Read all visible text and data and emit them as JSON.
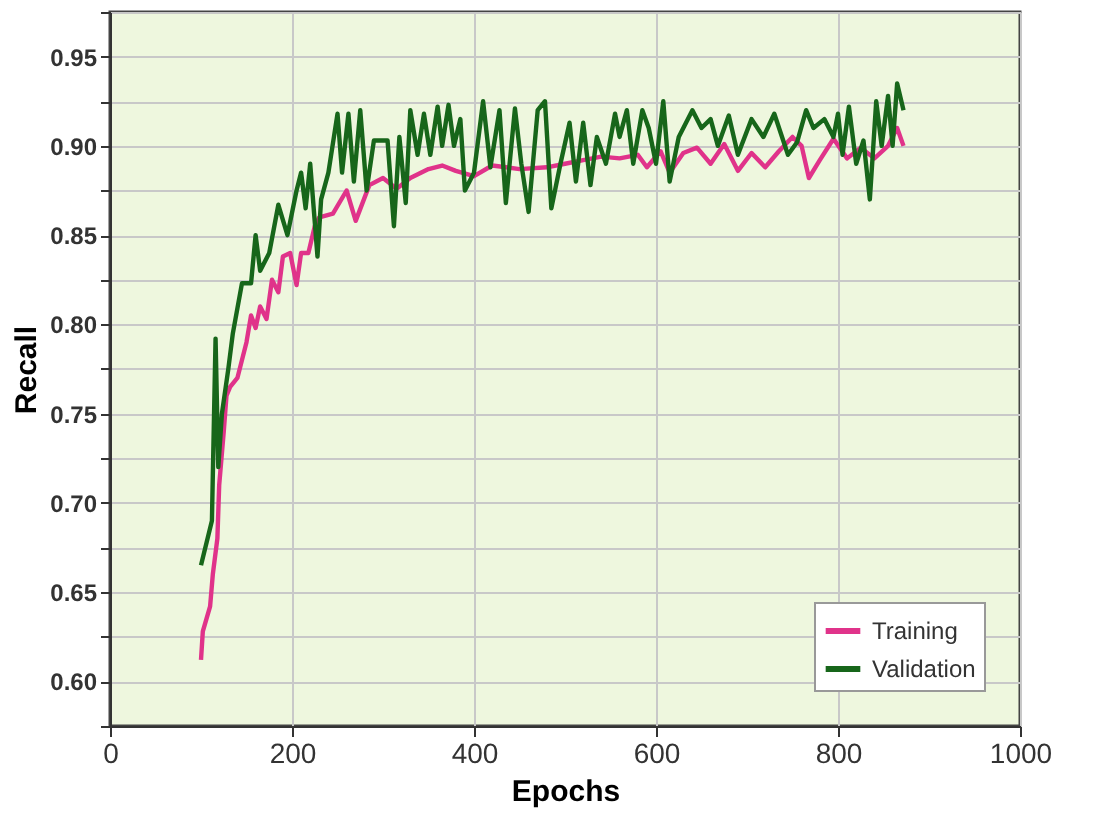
{
  "chart_data": {
    "type": "line",
    "xlabel": "Epochs",
    "ylabel": "Recall",
    "xlim": [
      0,
      1000
    ],
    "xticks": [
      0,
      200,
      400,
      600,
      800,
      1000
    ],
    "ylim": [
      0.575,
      0.975
    ],
    "yticks": [
      {
        "value": 0.575,
        "label": null
      },
      {
        "value": 0.6,
        "label": "0.60"
      },
      {
        "value": 0.625,
        "label": null
      },
      0.65,
      {
        "value": 0.675,
        "label": null
      },
      {
        "value": 0.7,
        "label": "0.70"
      },
      {
        "value": 0.725,
        "label": null
      },
      0.75,
      {
        "value": 0.775,
        "label": null
      },
      {
        "value": 0.8,
        "label": "0.80"
      },
      {
        "value": 0.825,
        "label": null
      },
      0.85,
      {
        "value": 0.875,
        "label": null
      },
      {
        "value": 0.9,
        "label": "0.90"
      },
      {
        "value": 0.925,
        "label": null
      },
      0.95,
      {
        "value": 0.975,
        "label": null
      }
    ],
    "grid": true,
    "legend": "bottom right",
    "line_style": "solid",
    "series": [
      {
        "name": "Training",
        "color": "#e0338a",
        "x": [
          100,
          102,
          110,
          113,
          118,
          120,
          125,
          128,
          132,
          140,
          150,
          155,
          160,
          165,
          172,
          178,
          185,
          190,
          198,
          205,
          210,
          218,
          225,
          230,
          245,
          260,
          270,
          285,
          300,
          315,
          330,
          350,
          365,
          380,
          400,
          420,
          450,
          480,
          500,
          520,
          540,
          560,
          580,
          590,
          605,
          615,
          630,
          645,
          660,
          675,
          690,
          705,
          720,
          735,
          750,
          760,
          768,
          780,
          795,
          810,
          825,
          840,
          855,
          865,
          872
        ],
        "values": [
          0.612,
          0.628,
          0.642,
          0.66,
          0.68,
          0.71,
          0.74,
          0.76,
          0.765,
          0.77,
          0.79,
          0.805,
          0.798,
          0.81,
          0.803,
          0.825,
          0.818,
          0.838,
          0.84,
          0.822,
          0.84,
          0.84,
          0.855,
          0.86,
          0.862,
          0.875,
          0.858,
          0.878,
          0.882,
          0.876,
          0.882,
          0.887,
          0.889,
          0.886,
          0.883,
          0.889,
          0.887,
          0.888,
          0.89,
          0.892,
          0.894,
          0.893,
          0.895,
          0.888,
          0.897,
          0.885,
          0.896,
          0.899,
          0.89,
          0.901,
          0.886,
          0.896,
          0.888,
          0.897,
          0.905,
          0.9,
          0.882,
          0.892,
          0.904,
          0.893,
          0.899,
          0.893,
          0.9,
          0.91,
          0.9
        ]
      },
      {
        "name": "Validation",
        "color": "#17661a",
        "x": [
          100,
          112,
          116,
          119,
          123,
          130,
          135,
          145,
          155,
          160,
          165,
          175,
          185,
          195,
          205,
          210,
          215,
          220,
          228,
          232,
          240,
          250,
          255,
          262,
          268,
          275,
          282,
          290,
          305,
          312,
          318,
          325,
          330,
          338,
          345,
          352,
          360,
          365,
          372,
          378,
          385,
          390,
          400,
          410,
          418,
          428,
          435,
          445,
          452,
          460,
          470,
          478,
          485,
          495,
          505,
          512,
          520,
          528,
          535,
          545,
          555,
          560,
          568,
          575,
          585,
          592,
          600,
          608,
          615,
          625,
          640,
          650,
          660,
          668,
          680,
          690,
          705,
          718,
          730,
          745,
          755,
          765,
          773,
          785,
          795,
          800,
          805,
          812,
          820,
          828,
          835,
          842,
          848,
          855,
          860,
          865,
          872
        ],
        "values": [
          0.665,
          0.69,
          0.792,
          0.72,
          0.75,
          0.775,
          0.795,
          0.823,
          0.823,
          0.85,
          0.83,
          0.84,
          0.867,
          0.85,
          0.875,
          0.885,
          0.865,
          0.89,
          0.838,
          0.87,
          0.885,
          0.918,
          0.885,
          0.918,
          0.88,
          0.92,
          0.875,
          0.903,
          0.903,
          0.855,
          0.905,
          0.868,
          0.92,
          0.895,
          0.918,
          0.895,
          0.922,
          0.9,
          0.923,
          0.9,
          0.915,
          0.875,
          0.885,
          0.925,
          0.888,
          0.92,
          0.868,
          0.921,
          0.89,
          0.863,
          0.92,
          0.925,
          0.865,
          0.89,
          0.913,
          0.88,
          0.913,
          0.878,
          0.905,
          0.89,
          0.918,
          0.905,
          0.92,
          0.89,
          0.92,
          0.91,
          0.89,
          0.925,
          0.88,
          0.905,
          0.92,
          0.91,
          0.915,
          0.9,
          0.917,
          0.895,
          0.915,
          0.905,
          0.918,
          0.895,
          0.902,
          0.92,
          0.91,
          0.915,
          0.905,
          0.918,
          0.895,
          0.922,
          0.89,
          0.903,
          0.87,
          0.925,
          0.9,
          0.928,
          0.9,
          0.935,
          0.92
        ]
      }
    ]
  }
}
